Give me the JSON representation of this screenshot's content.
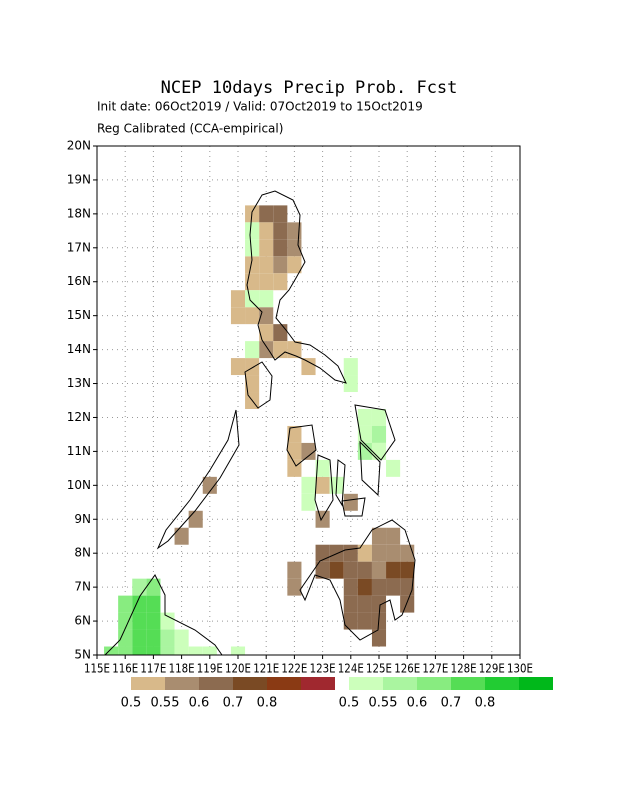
{
  "map": {
    "title": "NCEP 10days Precip Prob. Fcst",
    "subtitle": "Init date: 06Oct2019 / Valid: 07Oct2019 to 15Oct2019",
    "method": "Reg Calibrated (CCA-empirical)",
    "xlim": [
      115,
      130
    ],
    "ylim": [
      5,
      20
    ],
    "xticks": [
      {
        "value": 115,
        "label": "115E"
      },
      {
        "value": 116,
        "label": "116E"
      },
      {
        "value": 117,
        "label": "117E"
      },
      {
        "value": 118,
        "label": "118E"
      },
      {
        "value": 119,
        "label": "119E"
      },
      {
        "value": 120,
        "label": "120E"
      },
      {
        "value": 121,
        "label": "121E"
      },
      {
        "value": 122,
        "label": "122E"
      },
      {
        "value": 123,
        "label": "123E"
      },
      {
        "value": 124,
        "label": "124E"
      },
      {
        "value": 125,
        "label": "125E"
      },
      {
        "value": 126,
        "label": "126E"
      },
      {
        "value": 127,
        "label": "127E"
      },
      {
        "value": 128,
        "label": "128E"
      },
      {
        "value": 129,
        "label": "129E"
      },
      {
        "value": 130,
        "label": "130E"
      }
    ],
    "yticks": [
      {
        "value": 5,
        "label": "5N"
      },
      {
        "value": 6,
        "label": "6N"
      },
      {
        "value": 7,
        "label": "7N"
      },
      {
        "value": 8,
        "label": "8N"
      },
      {
        "value": 9,
        "label": "9N"
      },
      {
        "value": 10,
        "label": "10N"
      },
      {
        "value": 11,
        "label": "11N"
      },
      {
        "value": 12,
        "label": "12N"
      },
      {
        "value": 13,
        "label": "13N"
      },
      {
        "value": 14,
        "label": "14N"
      },
      {
        "value": 15,
        "label": "15N"
      },
      {
        "value": 16,
        "label": "16N"
      },
      {
        "value": 17,
        "label": "17N"
      },
      {
        "value": 18,
        "label": "18N"
      },
      {
        "value": 19,
        "label": "19N"
      },
      {
        "value": 20,
        "label": "20N"
      }
    ],
    "grid": true,
    "brown_scale": {
      "levels": [
        0.5,
        0.55,
        0.6,
        0.7,
        0.8
      ],
      "colors": [
        "#d8b98a",
        "#a98d70",
        "#8c6b50",
        "#7a4a24",
        "#8a3a14",
        "#a0282f"
      ]
    },
    "green_scale": {
      "levels": [
        0.5,
        0.55,
        0.6,
        0.7,
        0.8
      ],
      "colors": [
        "#ccffbb",
        "#aaf5a0",
        "#88ec80",
        "#55dd55",
        "#22cc33",
        "#00b81a"
      ]
    },
    "brown_cells": [
      {
        "lon": 120.5,
        "lat": 18,
        "value": 0.5
      },
      {
        "lon": 121,
        "lat": 18,
        "value": 0.6
      },
      {
        "lon": 121.5,
        "lat": 18,
        "value": 0.6
      },
      {
        "lon": 121,
        "lat": 17.5,
        "value": 0.5
      },
      {
        "lon": 121.5,
        "lat": 17.5,
        "value": 0.6
      },
      {
        "lon": 122,
        "lat": 17.5,
        "value": 0.55
      },
      {
        "lon": 121,
        "lat": 17,
        "value": 0.5
      },
      {
        "lon": 121.5,
        "lat": 17,
        "value": 0.6
      },
      {
        "lon": 122,
        "lat": 17,
        "value": 0.55
      },
      {
        "lon": 120.5,
        "lat": 16.5,
        "value": 0.5
      },
      {
        "lon": 121,
        "lat": 16.5,
        "value": 0.5
      },
      {
        "lon": 121.5,
        "lat": 16.5,
        "value": 0.55
      },
      {
        "lon": 122,
        "lat": 16.5,
        "value": 0.5
      },
      {
        "lon": 120.5,
        "lat": 16,
        "value": 0.5
      },
      {
        "lon": 121,
        "lat": 16,
        "value": 0.5
      },
      {
        "lon": 121.5,
        "lat": 16,
        "value": 0.5
      },
      {
        "lon": 120,
        "lat": 15.5,
        "value": 0.5
      },
      {
        "lon": 120,
        "lat": 15,
        "value": 0.5
      },
      {
        "lon": 120.5,
        "lat": 15,
        "value": 0.5
      },
      {
        "lon": 121,
        "lat": 15,
        "value": 0.55
      },
      {
        "lon": 121,
        "lat": 14.5,
        "value": 0.5
      },
      {
        "lon": 121.5,
        "lat": 14.5,
        "value": 0.6
      },
      {
        "lon": 121,
        "lat": 14,
        "value": 0.55
      },
      {
        "lon": 121.5,
        "lat": 14,
        "value": 0.5
      },
      {
        "lon": 122,
        "lat": 14,
        "value": 0.5
      },
      {
        "lon": 120,
        "lat": 13.5,
        "value": 0.5
      },
      {
        "lon": 120.5,
        "lat": 13.5,
        "value": 0.5
      },
      {
        "lon": 122.5,
        "lat": 13.5,
        "value": 0.5
      },
      {
        "lon": 120.5,
        "lat": 13,
        "value": 0.5
      },
      {
        "lon": 120.5,
        "lat": 12.5,
        "value": 0.5
      },
      {
        "lon": 122,
        "lat": 11.5,
        "value": 0.5
      },
      {
        "lon": 122,
        "lat": 11,
        "value": 0.5
      },
      {
        "lon": 122.5,
        "lat": 11,
        "value": 0.55
      },
      {
        "lon": 122,
        "lat": 10.5,
        "value": 0.5
      },
      {
        "lon": 123,
        "lat": 10,
        "value": 0.5
      },
      {
        "lon": 124,
        "lat": 9.5,
        "value": 0.55
      },
      {
        "lon": 123,
        "lat": 9,
        "value": 0.55
      },
      {
        "lon": 119,
        "lat": 10,
        "value": 0.55
      },
      {
        "lon": 118.5,
        "lat": 9,
        "value": 0.55
      },
      {
        "lon": 118,
        "lat": 8.5,
        "value": 0.55
      },
      {
        "lon": 125,
        "lat": 8.5,
        "value": 0.55
      },
      {
        "lon": 125.5,
        "lat": 8.5,
        "value": 0.55
      },
      {
        "lon": 123,
        "lat": 8,
        "value": 0.6
      },
      {
        "lon": 123.5,
        "lat": 8,
        "value": 0.6
      },
      {
        "lon": 124,
        "lat": 8,
        "value": 0.6
      },
      {
        "lon": 124.5,
        "lat": 8,
        "value": 0.5
      },
      {
        "lon": 125,
        "lat": 8,
        "value": 0.55
      },
      {
        "lon": 125.5,
        "lat": 8,
        "value": 0.55
      },
      {
        "lon": 126,
        "lat": 8,
        "value": 0.55
      },
      {
        "lon": 122,
        "lat": 7.5,
        "value": 0.55
      },
      {
        "lon": 123,
        "lat": 7.5,
        "value": 0.6
      },
      {
        "lon": 123.5,
        "lat": 7.5,
        "value": 0.7
      },
      {
        "lon": 124,
        "lat": 7.5,
        "value": 0.6
      },
      {
        "lon": 124.5,
        "lat": 7.5,
        "value": 0.6
      },
      {
        "lon": 125,
        "lat": 7.5,
        "value": 0.55
      },
      {
        "lon": 125.5,
        "lat": 7.5,
        "value": 0.7
      },
      {
        "lon": 126,
        "lat": 7.5,
        "value": 0.7
      },
      {
        "lon": 122,
        "lat": 7,
        "value": 0.55
      },
      {
        "lon": 124,
        "lat": 7,
        "value": 0.6
      },
      {
        "lon": 124.5,
        "lat": 7,
        "value": 0.7
      },
      {
        "lon": 125,
        "lat": 7,
        "value": 0.6
      },
      {
        "lon": 125.5,
        "lat": 7,
        "value": 0.6
      },
      {
        "lon": 126,
        "lat": 7,
        "value": 0.6
      },
      {
        "lon": 124,
        "lat": 6.5,
        "value": 0.6
      },
      {
        "lon": 124.5,
        "lat": 6.5,
        "value": 0.6
      },
      {
        "lon": 125,
        "lat": 6.5,
        "value": 0.6
      },
      {
        "lon": 126,
        "lat": 6.5,
        "value": 0.6
      },
      {
        "lon": 124,
        "lat": 6,
        "value": 0.6
      },
      {
        "lon": 124.5,
        "lat": 6,
        "value": 0.6
      },
      {
        "lon": 125,
        "lat": 6,
        "value": 0.6
      },
      {
        "lon": 125,
        "lat": 5.5,
        "value": 0.6
      }
    ],
    "green_cells": [
      {
        "lon": 120.5,
        "lat": 17.5,
        "value": 0.5
      },
      {
        "lon": 120.5,
        "lat": 17,
        "value": 0.5
      },
      {
        "lon": 120.5,
        "lat": 15.5,
        "value": 0.5
      },
      {
        "lon": 121,
        "lat": 15.5,
        "value": 0.5
      },
      {
        "lon": 120.5,
        "lat": 14,
        "value": 0.5
      },
      {
        "lon": 124,
        "lat": 13.5,
        "value": 0.5
      },
      {
        "lon": 124,
        "lat": 13,
        "value": 0.5
      },
      {
        "lon": 124.5,
        "lat": 12,
        "value": 0.5
      },
      {
        "lon": 125,
        "lat": 12,
        "value": 0.5
      },
      {
        "lon": 124.5,
        "lat": 11.5,
        "value": 0.5
      },
      {
        "lon": 125,
        "lat": 11.5,
        "value": 0.55
      },
      {
        "lon": 124.5,
        "lat": 11,
        "value": 0.55
      },
      {
        "lon": 125,
        "lat": 11,
        "value": 0.5
      },
      {
        "lon": 123,
        "lat": 10.5,
        "value": 0.5
      },
      {
        "lon": 125.5,
        "lat": 10.5,
        "value": 0.5
      },
      {
        "lon": 122.5,
        "lat": 10,
        "value": 0.5
      },
      {
        "lon": 123.5,
        "lat": 10,
        "value": 0.5
      },
      {
        "lon": 122.5,
        "lat": 9.5,
        "value": 0.5
      },
      {
        "lon": 117,
        "lat": 7,
        "value": 0.6
      },
      {
        "lon": 116.5,
        "lat": 7,
        "value": 0.55
      },
      {
        "lon": 116,
        "lat": 6.5,
        "value": 0.6
      },
      {
        "lon": 116.5,
        "lat": 6.5,
        "value": 0.7
      },
      {
        "lon": 117,
        "lat": 6.5,
        "value": 0.7
      },
      {
        "lon": 116,
        "lat": 6,
        "value": 0.6
      },
      {
        "lon": 116.5,
        "lat": 6,
        "value": 0.7
      },
      {
        "lon": 117,
        "lat": 6,
        "value": 0.7
      },
      {
        "lon": 117.5,
        "lat": 6,
        "value": 0.5
      },
      {
        "lon": 116,
        "lat": 5.5,
        "value": 0.6
      },
      {
        "lon": 116.5,
        "lat": 5.5,
        "value": 0.7
      },
      {
        "lon": 117,
        "lat": 5.5,
        "value": 0.7
      },
      {
        "lon": 117.5,
        "lat": 5.5,
        "value": 0.55
      },
      {
        "lon": 118,
        "lat": 5.5,
        "value": 0.5
      },
      {
        "lon": 115.5,
        "lat": 5,
        "value": 0.6
      },
      {
        "lon": 116,
        "lat": 5,
        "value": 0.6
      },
      {
        "lon": 116.5,
        "lat": 5,
        "value": 0.7
      },
      {
        "lon": 117,
        "lat": 5,
        "value": 0.7
      },
      {
        "lon": 117.5,
        "lat": 5,
        "value": 0.55
      },
      {
        "lon": 118,
        "lat": 5,
        "value": 0.5
      },
      {
        "lon": 118.5,
        "lat": 5,
        "value": 0.5
      },
      {
        "lon": 119,
        "lat": 5,
        "value": 0.5
      },
      {
        "lon": 120,
        "lat": 5,
        "value": 0.5
      }
    ]
  }
}
